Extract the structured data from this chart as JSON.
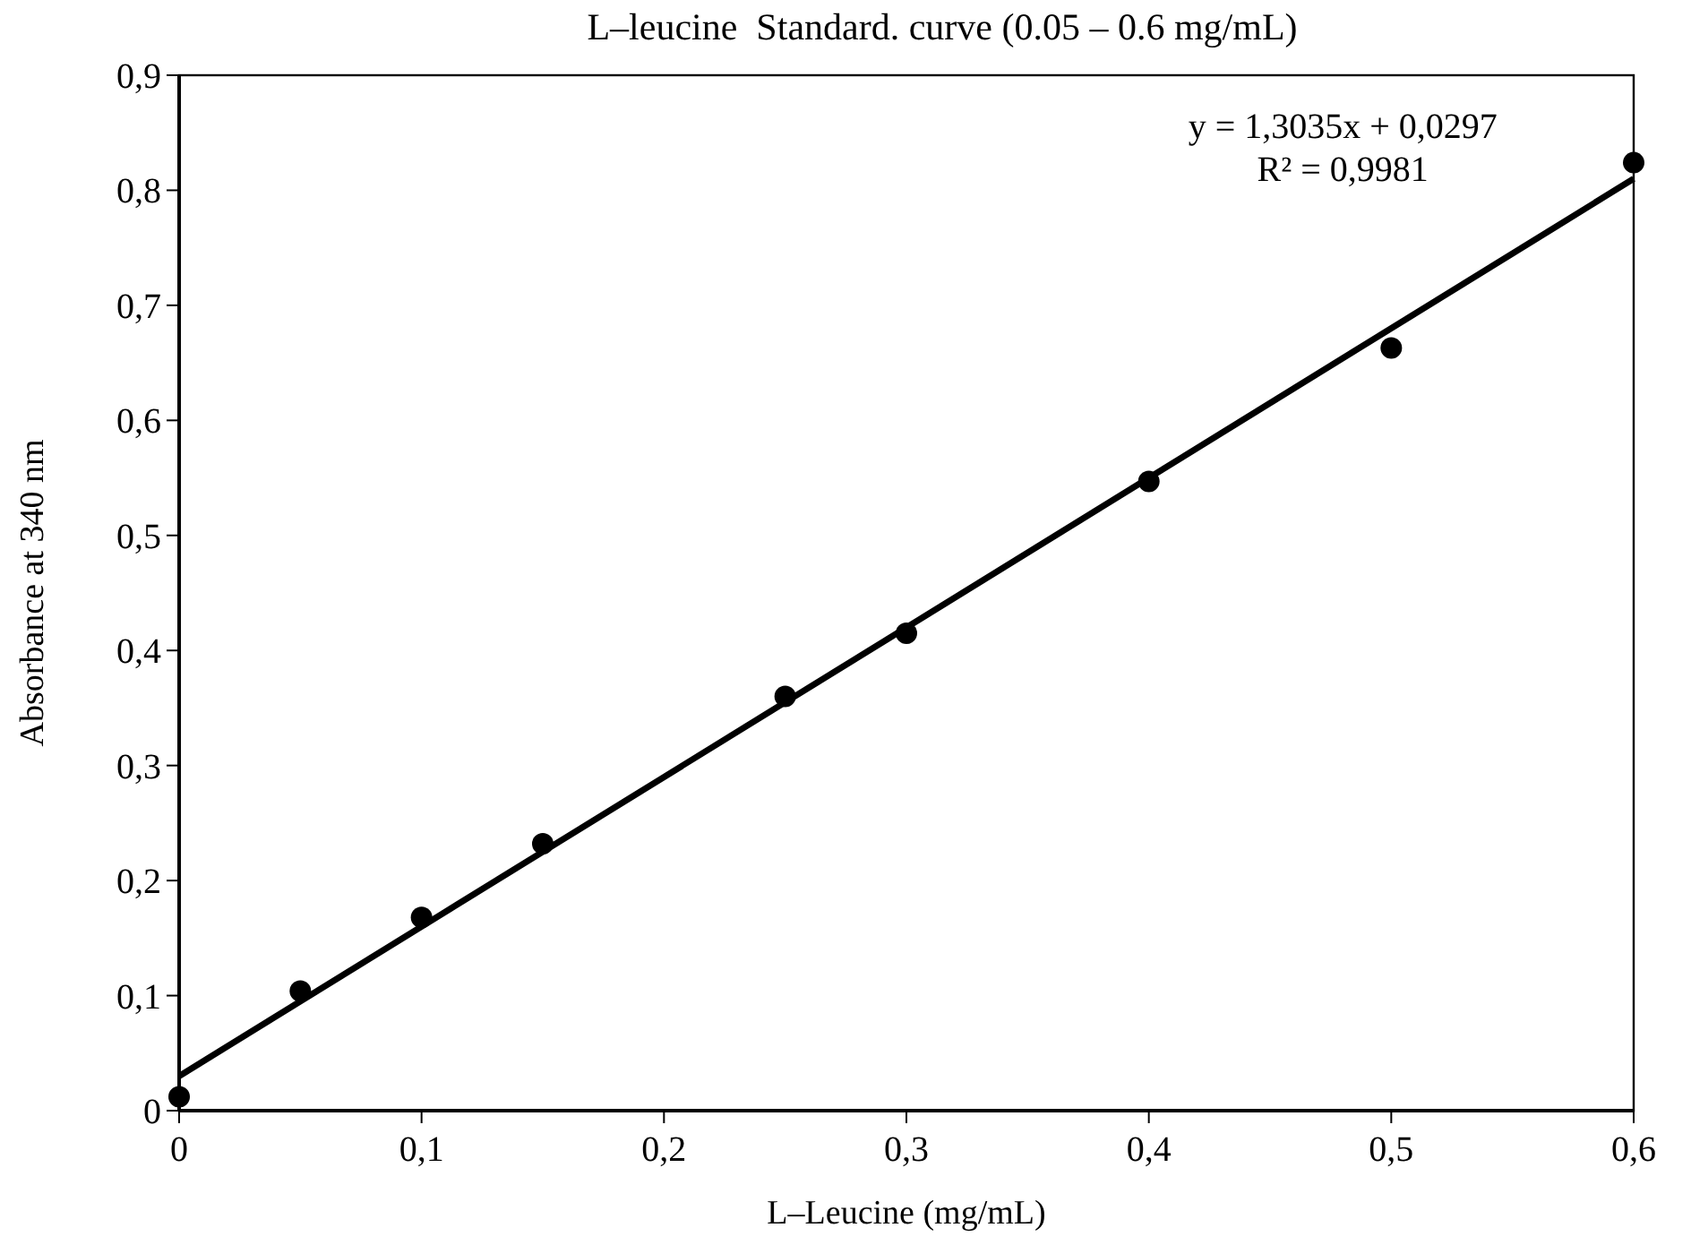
{
  "chart_data": {
    "type": "scatter",
    "title": "L–leucine  Standard. curve (0.05 – 0.6 mg/mL)",
    "xlabel": "L–Leucine (mg/mL)",
    "ylabel": "Absorbance at 340 nm",
    "annotations": [
      "y = 1,3035x + 0,0297",
      "R² = 0,9981"
    ],
    "x": [
      0,
      0.05,
      0.1,
      0.15,
      0.25,
      0.3,
      0.4,
      0.5,
      0.6
    ],
    "series": [
      {
        "color": "#000000",
        "marker": "circle",
        "values": [
          0.012,
          0.104,
          0.168,
          0.232,
          0.36,
          0.415,
          0.547,
          0.663,
          0.824
        ]
      },
      {
        "type": "line",
        "color": "#000000",
        "marker": "none",
        "x": [
          0,
          0.6
        ],
        "values": [
          0.03,
          0.81
        ]
      }
    ],
    "grid": false,
    "xlim": [
      0,
      0.6
    ],
    "xticks": [
      0,
      {
        "value": 0.1,
        "label": "0,1"
      },
      {
        "value": 0.2,
        "label": "0,2"
      },
      {
        "value": 0.3,
        "label": "0,3"
      },
      {
        "value": 0.4,
        "label": "0,4"
      },
      {
        "value": 0.5,
        "label": "0,5"
      },
      {
        "value": 0.6,
        "label": "0,6"
      }
    ],
    "ylim": [
      0,
      0.9
    ],
    "yticks": [
      0,
      {
        "value": 0.1,
        "label": "0,1"
      },
      {
        "value": 0.2,
        "label": "0,2"
      },
      {
        "value": 0.3,
        "label": "0,3"
      },
      {
        "value": 0.4,
        "label": "0,4"
      },
      {
        "value": 0.5,
        "label": "0,5"
      },
      {
        "value": 0.6,
        "label": "0,6"
      },
      {
        "value": 0.7,
        "label": "0,7"
      },
      {
        "value": 0.8,
        "label": "0,8"
      },
      {
        "value": 0.9,
        "label": "0,9"
      }
    ]
  }
}
